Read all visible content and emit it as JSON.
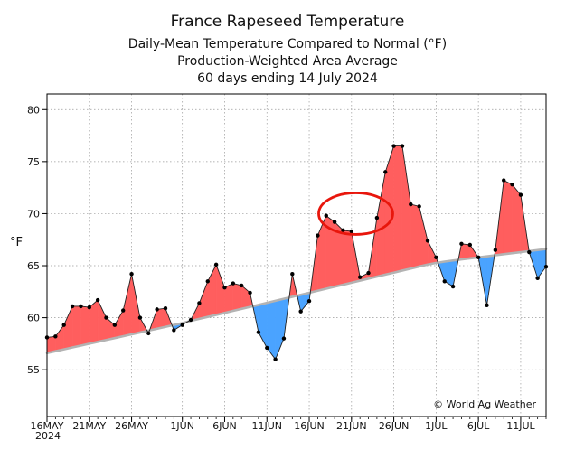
{
  "chart_data": {
    "type": "area",
    "title": "France Rapeseed Temperature",
    "subtitle_lines": [
      "Daily-Mean Temperature Compared to Normal (°F)",
      "Production-Weighted Area Average",
      "60 days ending 14 July 2024"
    ],
    "ylabel": "°F",
    "xlabel": "",
    "ylim": [
      50.5,
      81.5
    ],
    "y_ticks": [
      55,
      60,
      65,
      70,
      75,
      80
    ],
    "x_ticks": [
      {
        "day": 0,
        "label": "16MAY"
      },
      {
        "day": 5,
        "label": "21MAY"
      },
      {
        "day": 10,
        "label": "26MAY"
      },
      {
        "day": 16,
        "label": "1JUN"
      },
      {
        "day": 21,
        "label": "6JUN"
      },
      {
        "day": 26,
        "label": "11JUN"
      },
      {
        "day": 31,
        "label": "16JUN"
      },
      {
        "day": 36,
        "label": "21JUN"
      },
      {
        "day": 41,
        "label": "26JUN"
      },
      {
        "day": 46,
        "label": "1JUL"
      },
      {
        "day": 51,
        "label": "6JUL"
      },
      {
        "day": 56,
        "label": "11JUL"
      }
    ],
    "year_label": "2024",
    "grid": true,
    "legend": "none",
    "copyright": "© World Ag Weather",
    "series": [
      {
        "name": "Daily-Mean Temperature",
        "values": [
          58.1,
          58.2,
          59.3,
          61.1,
          61.1,
          61.0,
          61.7,
          60.0,
          59.3,
          60.7,
          64.2,
          60.0,
          58.5,
          60.8,
          60.9,
          58.8,
          59.3,
          59.8,
          61.4,
          63.5,
          65.1,
          62.9,
          63.3,
          63.1,
          62.4,
          58.6,
          57.1,
          56.0,
          58.0,
          64.2,
          60.6,
          61.6,
          67.9,
          69.8,
          69.2,
          68.4,
          68.3,
          63.9,
          64.3,
          69.6,
          74.0,
          76.5,
          76.5,
          70.9,
          70.7,
          67.4,
          65.8,
          63.5,
          63.0,
          67.1,
          67.0,
          65.8,
          61.2,
          66.5,
          73.2,
          72.8,
          71.8,
          66.3,
          63.8,
          64.9
        ]
      },
      {
        "name": "Normal",
        "values": [
          56.6,
          56.78,
          56.96,
          57.14,
          57.32,
          57.5,
          57.68,
          57.86,
          58.04,
          58.22,
          58.4,
          58.58,
          58.76,
          58.94,
          59.12,
          59.3,
          59.49,
          59.69,
          59.89,
          60.08,
          60.27,
          60.46,
          60.66,
          60.85,
          61.04,
          61.23,
          61.43,
          61.63,
          61.82,
          62.01,
          62.2,
          62.4,
          62.59,
          62.79,
          62.98,
          63.17,
          63.36,
          63.56,
          63.75,
          63.95,
          64.14,
          64.33,
          64.53,
          64.72,
          64.92,
          65.11,
          65.26,
          65.39,
          65.5,
          65.6,
          65.7,
          65.8,
          65.9,
          66.0,
          66.1,
          66.2,
          66.3,
          66.4,
          66.5,
          66.6
        ]
      }
    ],
    "annotations": [
      {
        "type": "ellipse",
        "center_day": 36.5,
        "center_value": 70.0,
        "color": "#e8160c"
      }
    ],
    "colors": {
      "above": "#ff5e5e",
      "below": "#4aa3ff",
      "normal": "#b3b3b3",
      "marker": "#000000",
      "circle": "#e8160c"
    }
  }
}
